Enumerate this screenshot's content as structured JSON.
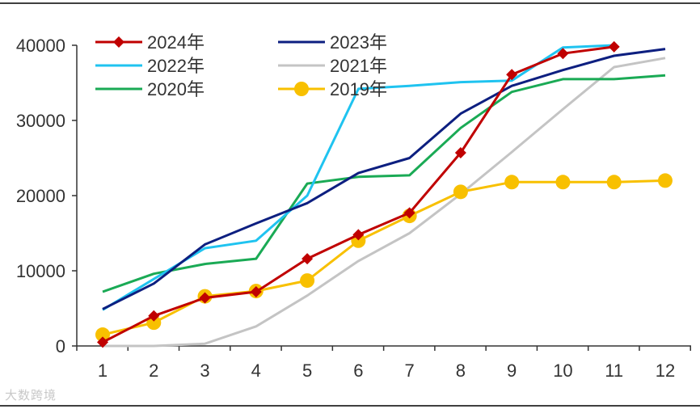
{
  "chart_data": {
    "type": "line",
    "categories": [
      "1",
      "2",
      "3",
      "4",
      "5",
      "6",
      "7",
      "8",
      "9",
      "10",
      "11",
      "12"
    ],
    "y_ticks": [
      "0",
      "10000",
      "20000",
      "30000",
      "40000"
    ],
    "ylim": [
      0,
      40000
    ],
    "series": [
      {
        "name": "2024年",
        "color": "#c00000",
        "marker": "diamond",
        "values": [
          500,
          4000,
          6400,
          7200,
          11600,
          14800,
          17700,
          25700,
          36100,
          38900,
          39800,
          null
        ]
      },
      {
        "name": "2023年",
        "color": "#0d1f80",
        "marker": "none",
        "values": [
          4900,
          8300,
          13500,
          16300,
          19000,
          23000,
          25000,
          30900,
          34600,
          36700,
          38600,
          39500
        ]
      },
      {
        "name": "2022年",
        "color": "#1fc3f0",
        "marker": "none",
        "values": [
          4800,
          8900,
          13000,
          14000,
          20000,
          34200,
          34600,
          35100,
          35300,
          39700,
          40000,
          null
        ]
      },
      {
        "name": "2021年",
        "color": "#c4c4c4",
        "marker": "none",
        "values": [
          0,
          0,
          300,
          2600,
          6700,
          11300,
          15000,
          20200,
          25800,
          31500,
          37100,
          38300
        ]
      },
      {
        "name": "2020年",
        "color": "#1aaa55",
        "marker": "none",
        "values": [
          7200,
          9600,
          10900,
          11600,
          21600,
          22500,
          22700,
          29000,
          33800,
          35500,
          35500,
          36000
        ]
      },
      {
        "name": "2019年",
        "color": "#f8c000",
        "marker": "circle",
        "values": [
          1500,
          3100,
          6600,
          7300,
          8700,
          14000,
          17300,
          20500,
          21800,
          21800,
          21800,
          22000
        ]
      }
    ],
    "legend_position": "top-left"
  },
  "watermark": "大数跨境"
}
